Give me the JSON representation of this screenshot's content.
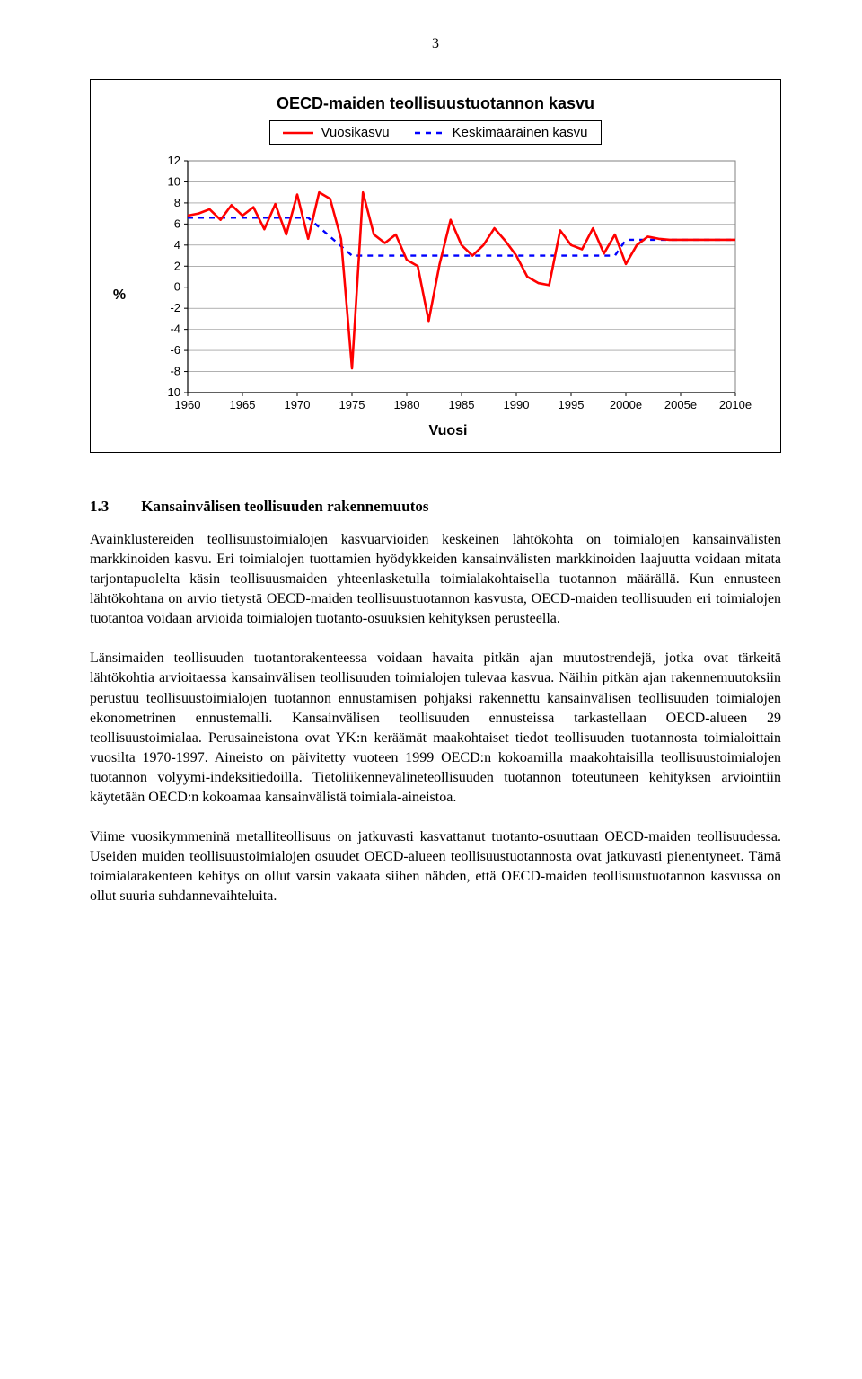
{
  "page_number": "3",
  "chart": {
    "type": "line",
    "title": "OECD-maiden teollisuustuotannon kasvu",
    "ylabel": "%",
    "xlabel": "Vuosi",
    "legend_series1": "Vuosikasvu",
    "legend_series2": "Keskimääräinen kasvu",
    "x_categories": [
      "1960",
      "1965",
      "1970",
      "1975",
      "1980",
      "1985",
      "1990",
      "1995",
      "2000e",
      "2005e",
      "2010e"
    ],
    "ylim": [
      -10,
      12
    ],
    "ytick_step": 2,
    "series1_color": "#ff0000",
    "series1_width": 2.6,
    "series2_color": "#0000ff",
    "series2_width": 2.4,
    "series2_dash": "6,6",
    "background_color": "#ffffff",
    "border_color": "#000000",
    "grid_color": "#808080",
    "tick_fontsize": 13,
    "series1_values": [
      6.8,
      7.0,
      7.4,
      6.4,
      7.8,
      6.8,
      7.6,
      5.5,
      7.9,
      5.0,
      8.8,
      4.6,
      9.0,
      8.4,
      4.6,
      -7.7,
      9.0,
      5.0,
      4.2,
      5.0,
      2.6,
      2.0,
      -3.2,
      2.2,
      6.4,
      4.0,
      3.0,
      4.0,
      5.6,
      4.4,
      3.0,
      1.0,
      0.4,
      0.2,
      5.4,
      4.0,
      3.6,
      5.6,
      3.2,
      5.0,
      2.2,
      4.0,
      4.8,
      4.6,
      4.5,
      4.5,
      4.5,
      4.5,
      4.5,
      4.5,
      4.5
    ],
    "series2": {
      "points": [
        [
          0,
          6.6
        ],
        [
          11,
          6.6
        ],
        [
          15,
          3.0
        ],
        [
          39,
          3.0
        ],
        [
          40,
          4.5
        ],
        [
          50,
          4.5
        ]
      ]
    }
  },
  "heading_number": "1.3",
  "heading_text": "Kansainvälisen teollisuuden rakennemuutos",
  "paragraphs": {
    "p1": "Avainklustereiden teollisuustoimialojen kasvuarvioiden keskeinen lähtökohta on toimialojen kansainvälisten markkinoiden kasvu. Eri toimialojen tuottamien hyödykkeiden kansainvälisten markkinoiden laajuutta voidaan mitata tarjontapuolelta käsin teollisuusmaiden yhteenlasketulla toimialakohtaisella tuotannon määrällä. Kun ennusteen lähtökohtana on arvio tietystä OECD-maiden teollisuustuotannon kasvusta, OECD-maiden teollisuuden eri toimialojen tuotantoa voidaan arvioida toimialojen tuotanto-osuuksien kehityksen perusteella.",
    "p2": "Länsimaiden teollisuuden tuotantorakenteessa voidaan havaita pitkän ajan muutostrendejä, jotka ovat tärkeitä lähtökohtia arvioitaessa kansainvälisen teollisuuden toimialojen tulevaa kasvua. Näihin pitkän ajan rakennemuutoksiin perustuu teollisuustoimialojen tuotannon ennustamisen pohjaksi rakennettu kansainvälisen teollisuuden toimialojen ekonometrinen ennustemalli. Kansainvälisen teollisuuden ennusteissa tarkastellaan OECD-alueen 29 teollisuustoimialaa. Perusaineistona ovat YK:n keräämät maakohtaiset tiedot teollisuuden tuotannosta toimialoittain vuosilta 1970-1997. Aineisto on päivitetty vuoteen 1999 OECD:n kokoamilla maakohtaisilla teollisuustoimialojen tuotannon volyymi-indeksitiedoilla. Tietoliikennevälineteollisuuden tuotannon toteutuneen kehityksen arviointiin käytetään OECD:n kokoamaa kansainvälistä toimiala-aineistoa.",
    "p3": "Viime vuosikymmeninä metalliteollisuus on jatkuvasti kasvattanut tuotanto-osuuttaan OECD-maiden teollisuudessa. Useiden muiden teollisuustoimialojen osuudet OECD-alueen teollisuustuotannosta ovat jatkuvasti pienentyneet. Tämä toimialarakenteen kehitys on ollut varsin vakaata siihen nähden, että OECD-maiden teollisuustuotannon kasvussa on ollut suuria suhdannevaihteluita."
  }
}
